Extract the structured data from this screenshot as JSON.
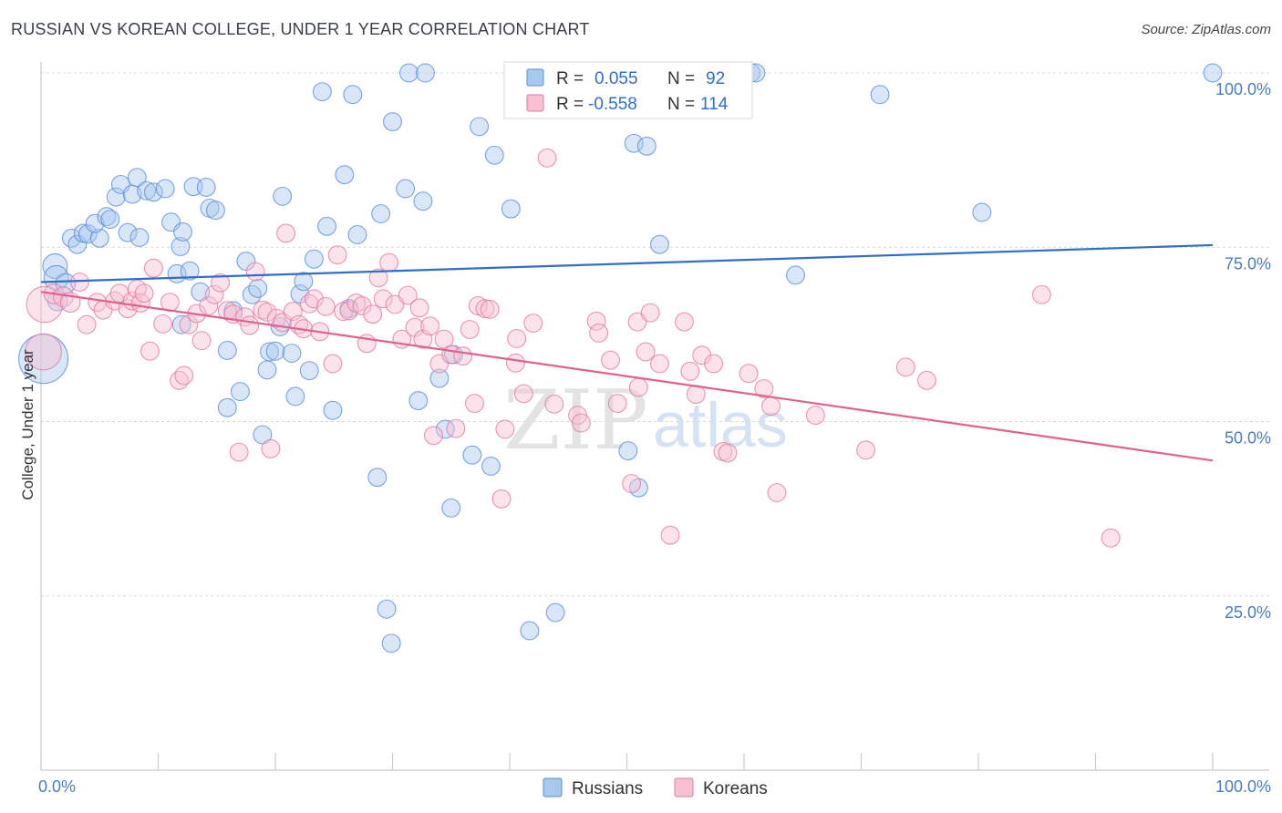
{
  "header": {
    "title": "RUSSIAN VS KOREAN COLLEGE, UNDER 1 YEAR CORRELATION CHART",
    "source": "Source: ZipAtlas.com"
  },
  "watermark": {
    "zip": "ZIP",
    "atlas": "atlas"
  },
  "legend_top": {
    "rows": [
      {
        "r_label": "R =",
        "r_value": "0.055",
        "n_label": "N =",
        "n_value": "92",
        "color": "#a8c8f0",
        "stroke": "#5b8fd6"
      },
      {
        "r_label": "R =",
        "r_value": "-0.558",
        "n_label": "N =",
        "n_value": "114",
        "color": "#f8c0d2",
        "stroke": "#e27aa0"
      }
    ]
  },
  "legend_bottom": {
    "items": [
      {
        "label": "Russians",
        "color": "#a8c8f0",
        "stroke": "#5b8fd6"
      },
      {
        "label": "Koreans",
        "color": "#f8c0d2",
        "stroke": "#e27aa0"
      }
    ]
  },
  "chart_data": {
    "type": "scatter",
    "title": "RUSSIAN VS KOREAN COLLEGE, UNDER 1 YEAR CORRELATION CHART",
    "xlabel": "",
    "ylabel": "College, Under 1 year",
    "xlim": [
      0,
      100
    ],
    "ylim": [
      0,
      100
    ],
    "x_tick_labels": [
      "0.0%",
      "100.0%"
    ],
    "y_ticks": [
      25,
      50,
      75,
      100
    ],
    "y_tick_labels": [
      "25.0%",
      "50.0%",
      "75.0%",
      "100.0%"
    ],
    "grid": true,
    "colors": {
      "russians_fill": "#a8c8f0",
      "russians_stroke": "#5b8fd6",
      "russians_line": "#2f6fc9",
      "koreans_fill": "#f8c0d2",
      "koreans_stroke": "#e27aa0",
      "koreans_line": "#e0608f"
    },
    "series": [
      {
        "name": "Russians",
        "trend": [
          [
            0,
            70.0
          ],
          [
            100,
            75.3
          ]
        ],
        "points": [
          [
            0.2,
            59.0,
            3
          ],
          [
            1.2,
            72.3,
            1.5
          ],
          [
            1.3,
            70.6,
            1.5
          ],
          [
            2.1,
            69.8,
            1.2
          ],
          [
            1.4,
            67.3,
            1.2
          ],
          [
            2.6,
            76.3,
            1.1
          ],
          [
            3.1,
            75.4,
            1.1
          ],
          [
            3.6,
            77.0,
            1.1
          ],
          [
            4.0,
            76.9,
            1.1
          ],
          [
            5.0,
            76.3,
            1.1
          ],
          [
            4.6,
            78.4,
            1.1
          ],
          [
            5.6,
            79.4,
            1.1
          ],
          [
            5.9,
            79.0,
            1.1
          ],
          [
            6.4,
            82.2,
            1.1
          ],
          [
            6.8,
            84.0,
            1.1
          ],
          [
            7.4,
            77.1,
            1.1
          ],
          [
            7.8,
            82.6,
            1.1
          ],
          [
            8.2,
            85.0,
            1.1
          ],
          [
            8.4,
            76.4,
            1.1
          ],
          [
            9.0,
            83.1,
            1.1
          ],
          [
            9.6,
            82.9,
            1.1
          ],
          [
            10.6,
            83.4,
            1.1
          ],
          [
            11.1,
            78.6,
            1.1
          ],
          [
            11.6,
            71.2,
            1.1
          ],
          [
            11.9,
            75.1,
            1.1
          ],
          [
            12.1,
            77.2,
            1.1
          ],
          [
            12.7,
            71.6,
            1.1
          ],
          [
            13.0,
            83.7,
            1.1
          ],
          [
            14.1,
            83.6,
            1.1
          ],
          [
            14.4,
            80.6,
            1.1
          ],
          [
            14.9,
            80.3,
            1.1
          ],
          [
            13.6,
            68.6,
            1.1
          ],
          [
            12.0,
            63.9,
            1.1
          ],
          [
            16.4,
            65.9,
            1.1
          ],
          [
            17.5,
            73.0,
            1.1
          ],
          [
            18.0,
            68.2,
            1.1
          ],
          [
            18.5,
            69.1,
            1.1
          ],
          [
            20.6,
            82.3,
            1.1
          ],
          [
            19.5,
            60.0,
            1.1
          ],
          [
            17.0,
            54.3,
            1.1
          ],
          [
            15.9,
            52.0,
            1.1
          ],
          [
            15.9,
            60.2,
            1.1
          ],
          [
            18.9,
            48.1,
            1.1
          ],
          [
            19.3,
            57.4,
            1.1
          ],
          [
            20.0,
            60.1,
            1.1
          ],
          [
            20.4,
            63.6,
            1.1
          ],
          [
            21.4,
            59.8,
            1.1
          ],
          [
            21.7,
            53.6,
            1.1
          ],
          [
            22.1,
            68.3,
            1.1
          ],
          [
            22.4,
            70.1,
            1.1
          ],
          [
            22.9,
            57.3,
            1.1
          ],
          [
            23.3,
            73.3,
            1.1
          ],
          [
            24.0,
            97.3,
            1.1
          ],
          [
            24.4,
            78.0,
            1.1
          ],
          [
            24.9,
            51.6,
            1.1
          ],
          [
            25.9,
            85.4,
            1.1
          ],
          [
            26.3,
            66.2,
            1.1
          ],
          [
            26.6,
            96.9,
            1.1
          ],
          [
            27.0,
            76.8,
            1.1
          ],
          [
            29.0,
            79.8,
            1.1
          ],
          [
            28.7,
            42.0,
            1.1
          ],
          [
            30.0,
            93.0,
            1.1
          ],
          [
            31.1,
            83.4,
            1.1
          ],
          [
            31.4,
            100.0,
            1.1
          ],
          [
            32.2,
            53.0,
            1.1
          ],
          [
            32.6,
            81.6,
            1.1
          ],
          [
            32.8,
            100.0,
            1.1
          ],
          [
            34.0,
            56.2,
            1.1
          ],
          [
            34.5,
            48.9,
            1.1
          ],
          [
            35.2,
            59.6,
            1.1
          ],
          [
            35.0,
            37.6,
            1.1
          ],
          [
            36.8,
            45.2,
            1.1
          ],
          [
            37.4,
            92.3,
            1.1
          ],
          [
            38.4,
            43.6,
            1.1
          ],
          [
            38.7,
            88.2,
            1.1
          ],
          [
            40.1,
            80.5,
            1.1
          ],
          [
            41.7,
            20.0,
            1.1
          ],
          [
            43.9,
            22.6,
            1.1
          ],
          [
            47.5,
            100.0,
            1.1
          ],
          [
            50.1,
            45.8,
            1.1
          ],
          [
            50.6,
            89.9,
            1.1
          ],
          [
            51.0,
            40.5,
            1.1
          ],
          [
            51.7,
            89.5,
            1.1
          ],
          [
            52.8,
            75.4,
            1.1
          ],
          [
            60.6,
            100.0,
            1.1
          ],
          [
            61.0,
            100.0,
            1.1
          ],
          [
            64.4,
            71.0,
            1.1
          ],
          [
            71.6,
            96.9,
            1.1
          ],
          [
            80.3,
            80.0,
            1.1
          ],
          [
            100.0,
            100.0,
            1.1
          ],
          [
            29.5,
            23.1,
            1.1
          ],
          [
            29.9,
            18.2,
            1.1
          ]
        ]
      },
      {
        "name": "Koreans",
        "trend": [
          [
            0,
            68.6
          ],
          [
            100,
            44.4
          ]
        ],
        "points": [
          [
            0.3,
            66.8,
            2.2
          ],
          [
            0.2,
            60.0,
            2.2
          ],
          [
            1.1,
            68.3,
            1.2
          ],
          [
            1.9,
            67.9,
            1.2
          ],
          [
            2.5,
            67.1,
            1.2
          ],
          [
            3.3,
            70.0,
            1.1
          ],
          [
            3.9,
            63.9,
            1.1
          ],
          [
            4.8,
            67.1,
            1.1
          ],
          [
            5.3,
            66.0,
            1.1
          ],
          [
            6.3,
            67.3,
            1.1
          ],
          [
            6.7,
            68.4,
            1.1
          ],
          [
            7.4,
            66.2,
            1.1
          ],
          [
            7.8,
            67.3,
            1.1
          ],
          [
            8.2,
            69.0,
            1.1
          ],
          [
            8.5,
            67.0,
            1.1
          ],
          [
            8.8,
            68.4,
            1.1
          ],
          [
            9.3,
            60.1,
            1.1
          ],
          [
            9.6,
            72.0,
            1.1
          ],
          [
            10.4,
            64.0,
            1.1
          ],
          [
            11.0,
            67.1,
            1.1
          ],
          [
            11.8,
            55.9,
            1.1
          ],
          [
            12.2,
            56.6,
            1.1
          ],
          [
            12.6,
            63.9,
            1.1
          ],
          [
            13.3,
            65.5,
            1.1
          ],
          [
            13.7,
            61.6,
            1.1
          ],
          [
            14.3,
            66.6,
            1.1
          ],
          [
            14.8,
            68.2,
            1.1
          ],
          [
            15.3,
            69.9,
            1.1
          ],
          [
            15.9,
            65.9,
            1.1
          ],
          [
            16.4,
            65.4,
            1.1
          ],
          [
            16.9,
            45.6,
            1.1
          ],
          [
            17.4,
            65.0,
            1.1
          ],
          [
            17.8,
            63.8,
            1.1
          ],
          [
            18.3,
            71.5,
            1.1
          ],
          [
            18.9,
            66.0,
            1.1
          ],
          [
            19.3,
            65.7,
            1.1
          ],
          [
            19.6,
            46.1,
            1.1
          ],
          [
            20.1,
            64.8,
            1.1
          ],
          [
            20.6,
            64.2,
            1.1
          ],
          [
            20.9,
            77.0,
            1.1
          ],
          [
            21.5,
            65.8,
            1.1
          ],
          [
            22.0,
            63.9,
            1.1
          ],
          [
            22.4,
            63.3,
            1.1
          ],
          [
            22.9,
            66.9,
            1.1
          ],
          [
            23.3,
            67.6,
            1.1
          ],
          [
            23.8,
            62.9,
            1.1
          ],
          [
            24.3,
            66.5,
            1.1
          ],
          [
            24.9,
            58.3,
            1.1
          ],
          [
            25.3,
            73.9,
            1.1
          ],
          [
            25.8,
            65.8,
            1.1
          ],
          [
            26.3,
            65.9,
            1.1
          ],
          [
            26.9,
            67.0,
            1.1
          ],
          [
            27.4,
            66.6,
            1.1
          ],
          [
            27.8,
            61.2,
            1.1
          ],
          [
            28.3,
            65.4,
            1.1
          ],
          [
            28.8,
            70.6,
            1.1
          ],
          [
            29.2,
            67.6,
            1.1
          ],
          [
            29.7,
            72.8,
            1.1
          ],
          [
            30.2,
            66.8,
            1.1
          ],
          [
            30.8,
            61.8,
            1.1
          ],
          [
            31.3,
            68.1,
            1.1
          ],
          [
            31.9,
            63.5,
            1.1
          ],
          [
            32.3,
            66.3,
            1.1
          ],
          [
            32.6,
            61.8,
            1.1
          ],
          [
            33.2,
            63.7,
            1.1
          ],
          [
            33.5,
            48.0,
            1.1
          ],
          [
            34.0,
            58.3,
            1.1
          ],
          [
            34.4,
            61.8,
            1.1
          ],
          [
            35.0,
            59.6,
            1.1
          ],
          [
            35.4,
            49.0,
            1.1
          ],
          [
            36.0,
            59.4,
            1.1
          ],
          [
            36.6,
            63.2,
            1.1
          ],
          [
            37.0,
            52.6,
            1.1
          ],
          [
            37.3,
            66.6,
            1.1
          ],
          [
            37.9,
            66.2,
            1.1
          ],
          [
            38.3,
            66.1,
            1.1
          ],
          [
            39.3,
            38.9,
            1.1
          ],
          [
            39.6,
            48.9,
            1.1
          ],
          [
            40.5,
            58.4,
            1.1
          ],
          [
            40.6,
            61.9,
            1.1
          ],
          [
            41.2,
            54.0,
            1.1
          ],
          [
            42.0,
            64.1,
            1.1
          ],
          [
            43.2,
            87.8,
            1.1
          ],
          [
            43.8,
            52.5,
            1.1
          ],
          [
            45.8,
            50.9,
            1.1
          ],
          [
            46.1,
            49.8,
            1.1
          ],
          [
            47.4,
            64.4,
            1.1
          ],
          [
            47.6,
            62.7,
            1.1
          ],
          [
            48.6,
            58.8,
            1.1
          ],
          [
            49.2,
            52.6,
            1.1
          ],
          [
            50.4,
            41.1,
            1.1
          ],
          [
            50.9,
            64.3,
            1.1
          ],
          [
            51.0,
            54.9,
            1.1
          ],
          [
            52.0,
            65.6,
            1.1
          ],
          [
            52.8,
            58.3,
            1.1
          ],
          [
            53.7,
            33.7,
            1.1
          ],
          [
            54.9,
            64.3,
            1.1
          ],
          [
            55.4,
            57.2,
            1.1
          ],
          [
            55.9,
            53.9,
            1.1
          ],
          [
            56.4,
            59.5,
            1.1
          ],
          [
            57.4,
            58.3,
            1.1
          ],
          [
            58.2,
            45.7,
            1.1
          ],
          [
            58.6,
            45.5,
            1.1
          ],
          [
            60.4,
            56.9,
            1.1
          ],
          [
            61.7,
            54.7,
            1.1
          ],
          [
            62.3,
            52.2,
            1.1
          ],
          [
            62.8,
            39.8,
            1.1
          ],
          [
            66.1,
            50.9,
            1.1
          ],
          [
            70.4,
            45.9,
            1.1
          ],
          [
            73.8,
            57.8,
            1.1
          ],
          [
            75.6,
            55.9,
            1.1
          ],
          [
            85.4,
            68.2,
            1.1
          ],
          [
            91.3,
            33.3,
            1.1
          ],
          [
            51.6,
            60.0,
            1.1
          ]
        ]
      }
    ]
  }
}
